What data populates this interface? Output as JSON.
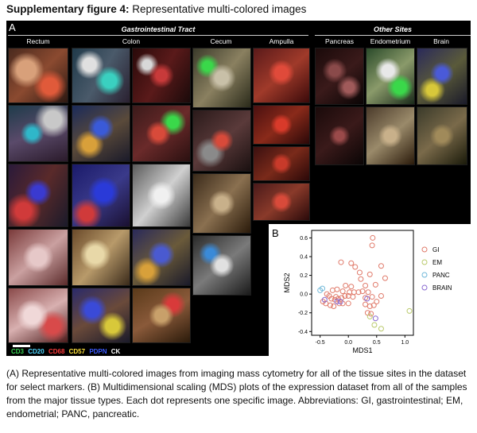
{
  "caption": {
    "title_bold": "Supplementary figure 4:",
    "title_rest": " Representative multi-colored images",
    "body": "(A) Representative multi-colored images from imaging mass cytometry for all of the tissue sites in the dataset for select markers. (B) Multidimensional scaling (MDS) plots of the expression dataset from all of the samples from the major tissue types. Each dot represents one specific image. Abbreviations: GI, gastrointestinal; EM, endometrial; PANC, pancreatic."
  },
  "panel_a": {
    "letter": "A",
    "gi_title": "Gastrointestinal Tract",
    "other_title": "Other Sites",
    "columns": [
      "Rectum",
      "Colon",
      "Cecum",
      "Ampulla",
      "Pancreas",
      "Endometrium",
      "Brain"
    ],
    "markers": [
      {
        "label": "CD3",
        "color": "#39d353"
      },
      {
        "label": "CD20",
        "color": "#4fd6ff"
      },
      {
        "label": "CD68",
        "color": "#ff3b3b"
      },
      {
        "label": "CD57",
        "color": "#ffe23b"
      },
      {
        "label": "PDPN",
        "color": "#3b5bff"
      },
      {
        "label": "CK",
        "color": "#ffffff"
      }
    ]
  },
  "panel_b": {
    "letter": "B"
  },
  "chart_data": {
    "type": "scatter",
    "title": "",
    "xlabel": "MDS1",
    "ylabel": "MDS2",
    "xlim": [
      -0.65,
      1.15
    ],
    "ylim": [
      -0.44,
      0.68
    ],
    "xticks": [
      -0.5,
      0.0,
      0.5,
      1.0
    ],
    "xtick_labels": [
      "-0.5",
      "0.0",
      "0.5",
      "1.0"
    ],
    "yticks": [
      -0.4,
      -0.2,
      0.0,
      0.2,
      0.4,
      0.6
    ],
    "ytick_labels": [
      "-0.4",
      "-0.2",
      "0.0",
      "0.2",
      "0.4",
      "0.6"
    ],
    "grid": false,
    "legend_position": "right",
    "series": [
      {
        "name": "GI",
        "color": "#e07a6a",
        "points": [
          [
            0.43,
            0.6
          ],
          [
            0.42,
            0.52
          ],
          [
            -0.13,
            0.34
          ],
          [
            0.05,
            0.33
          ],
          [
            0.12,
            0.29
          ],
          [
            0.58,
            0.3
          ],
          [
            0.2,
            0.23
          ],
          [
            0.38,
            0.21
          ],
          [
            0.65,
            0.17
          ],
          [
            0.22,
            0.16
          ],
          [
            -0.05,
            0.09
          ],
          [
            0.05,
            0.08
          ],
          [
            0.3,
            0.09
          ],
          [
            0.48,
            0.1
          ],
          [
            -0.2,
            0.05
          ],
          [
            -0.28,
            0.04
          ],
          [
            -0.1,
            0.03
          ],
          [
            0.02,
            0.02
          ],
          [
            0.1,
            0.02
          ],
          [
            0.18,
            0.02
          ],
          [
            0.25,
            0.03
          ],
          [
            0.35,
            0.02
          ],
          [
            -0.38,
            0.0
          ],
          [
            -0.34,
            -0.02
          ],
          [
            -0.3,
            -0.05
          ],
          [
            -0.24,
            -0.06
          ],
          [
            -0.18,
            -0.05
          ],
          [
            -0.12,
            -0.04
          ],
          [
            -0.06,
            -0.02
          ],
          [
            0.0,
            -0.02
          ],
          [
            0.08,
            -0.03
          ],
          [
            0.3,
            -0.04
          ],
          [
            0.42,
            -0.03
          ],
          [
            0.58,
            -0.02
          ],
          [
            -0.45,
            -0.08
          ],
          [
            -0.4,
            -0.1
          ],
          [
            -0.32,
            -0.12
          ],
          [
            -0.26,
            -0.13
          ],
          [
            -0.16,
            -0.1
          ],
          [
            -0.1,
            -0.1
          ],
          [
            0.0,
            -0.1
          ],
          [
            0.3,
            -0.11
          ],
          [
            0.38,
            -0.13
          ],
          [
            0.45,
            -0.12
          ],
          [
            0.5,
            -0.08
          ],
          [
            0.34,
            -0.2
          ],
          [
            0.4,
            -0.21
          ],
          [
            -0.22,
            -0.03
          ]
        ]
      },
      {
        "name": "EM",
        "color": "#b9c96a",
        "points": [
          [
            0.46,
            -0.33
          ],
          [
            0.58,
            -0.37
          ],
          [
            1.08,
            -0.18
          ],
          [
            0.38,
            -0.24
          ]
        ]
      },
      {
        "name": "PANC",
        "color": "#6fb7d8",
        "points": [
          [
            -0.5,
            0.04
          ],
          [
            -0.46,
            0.06
          ]
        ]
      },
      {
        "name": "BRAIN",
        "color": "#8a6ad0",
        "points": [
          [
            -0.2,
            -0.08
          ],
          [
            -0.14,
            -0.08
          ],
          [
            0.33,
            -0.05
          ],
          [
            0.48,
            -0.26
          ],
          [
            -0.42,
            -0.06
          ]
        ]
      }
    ]
  }
}
